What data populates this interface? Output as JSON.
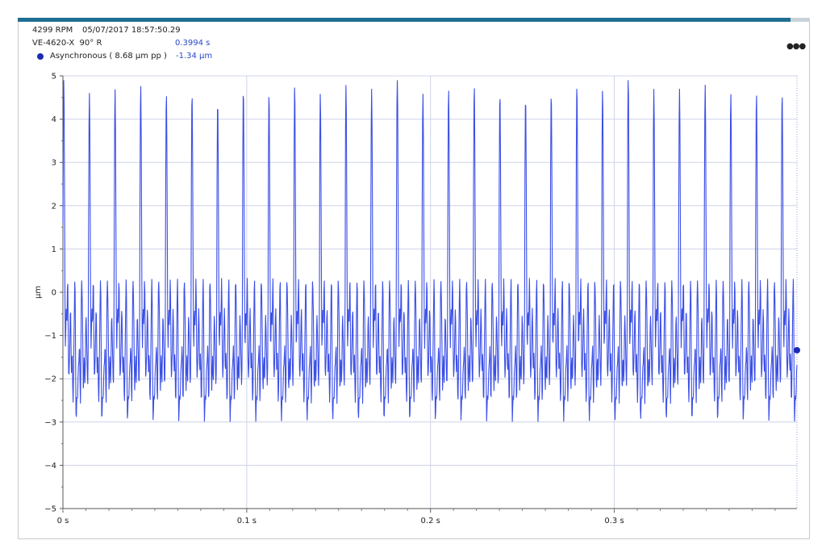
{
  "header": {
    "rpm": "4299 RPM",
    "timestamp": "05/07/2017 18:57:50.29",
    "probe": "VE-4620-X  90° R",
    "cursor_time": "0.3994 s",
    "legend_label": "Asynchronous ( 8.68 µm pp )",
    "cursor_value": "-1.34 µm",
    "menu_icon": "more-icon"
  },
  "colors": {
    "series": "#3b4fe6",
    "marker": "#1c2bb0",
    "accent_bar": "#1f6f93"
  },
  "chart_data": {
    "type": "line",
    "ylabel": "µm",
    "xlabel": "",
    "xlim": [
      0,
      0.3994
    ],
    "ylim": [
      -5,
      5
    ],
    "x_ticks": [
      0,
      0.1,
      0.2,
      0.3
    ],
    "x_tick_labels": [
      "0 s",
      "0.1 s",
      "0.2 s",
      "0.3 s"
    ],
    "y_ticks": [
      5,
      4,
      3,
      2,
      1,
      0,
      -1,
      -2,
      -3,
      -4,
      -5
    ],
    "y_tick_labels": [
      "5",
      "4",
      "3",
      "2",
      "1",
      "0",
      "−1",
      "−2",
      "−3",
      "−4",
      "−5"
    ],
    "grid": true,
    "cursor": {
      "x": 0.3994,
      "y": -1.34
    },
    "series": [
      {
        "name": "Asynchronous",
        "waveform": "periodic",
        "fundamental_period_s": 0.01396,
        "cycles": 28.6,
        "peak_values": [
          4.7,
          4.3,
          4.4,
          4.5,
          4.3,
          4.3,
          4.1,
          4.4,
          4.3,
          4.5,
          4.3,
          4.5,
          4.4,
          4.9,
          4.3,
          4.4,
          4.5,
          4.3,
          4.2,
          4.3,
          4.5,
          4.4,
          4.8,
          4.4,
          4.4,
          4.5,
          4.3,
          4.3,
          4.3,
          4.4
        ],
        "min_value": -3.8,
        "max_value": 4.9
      }
    ]
  }
}
